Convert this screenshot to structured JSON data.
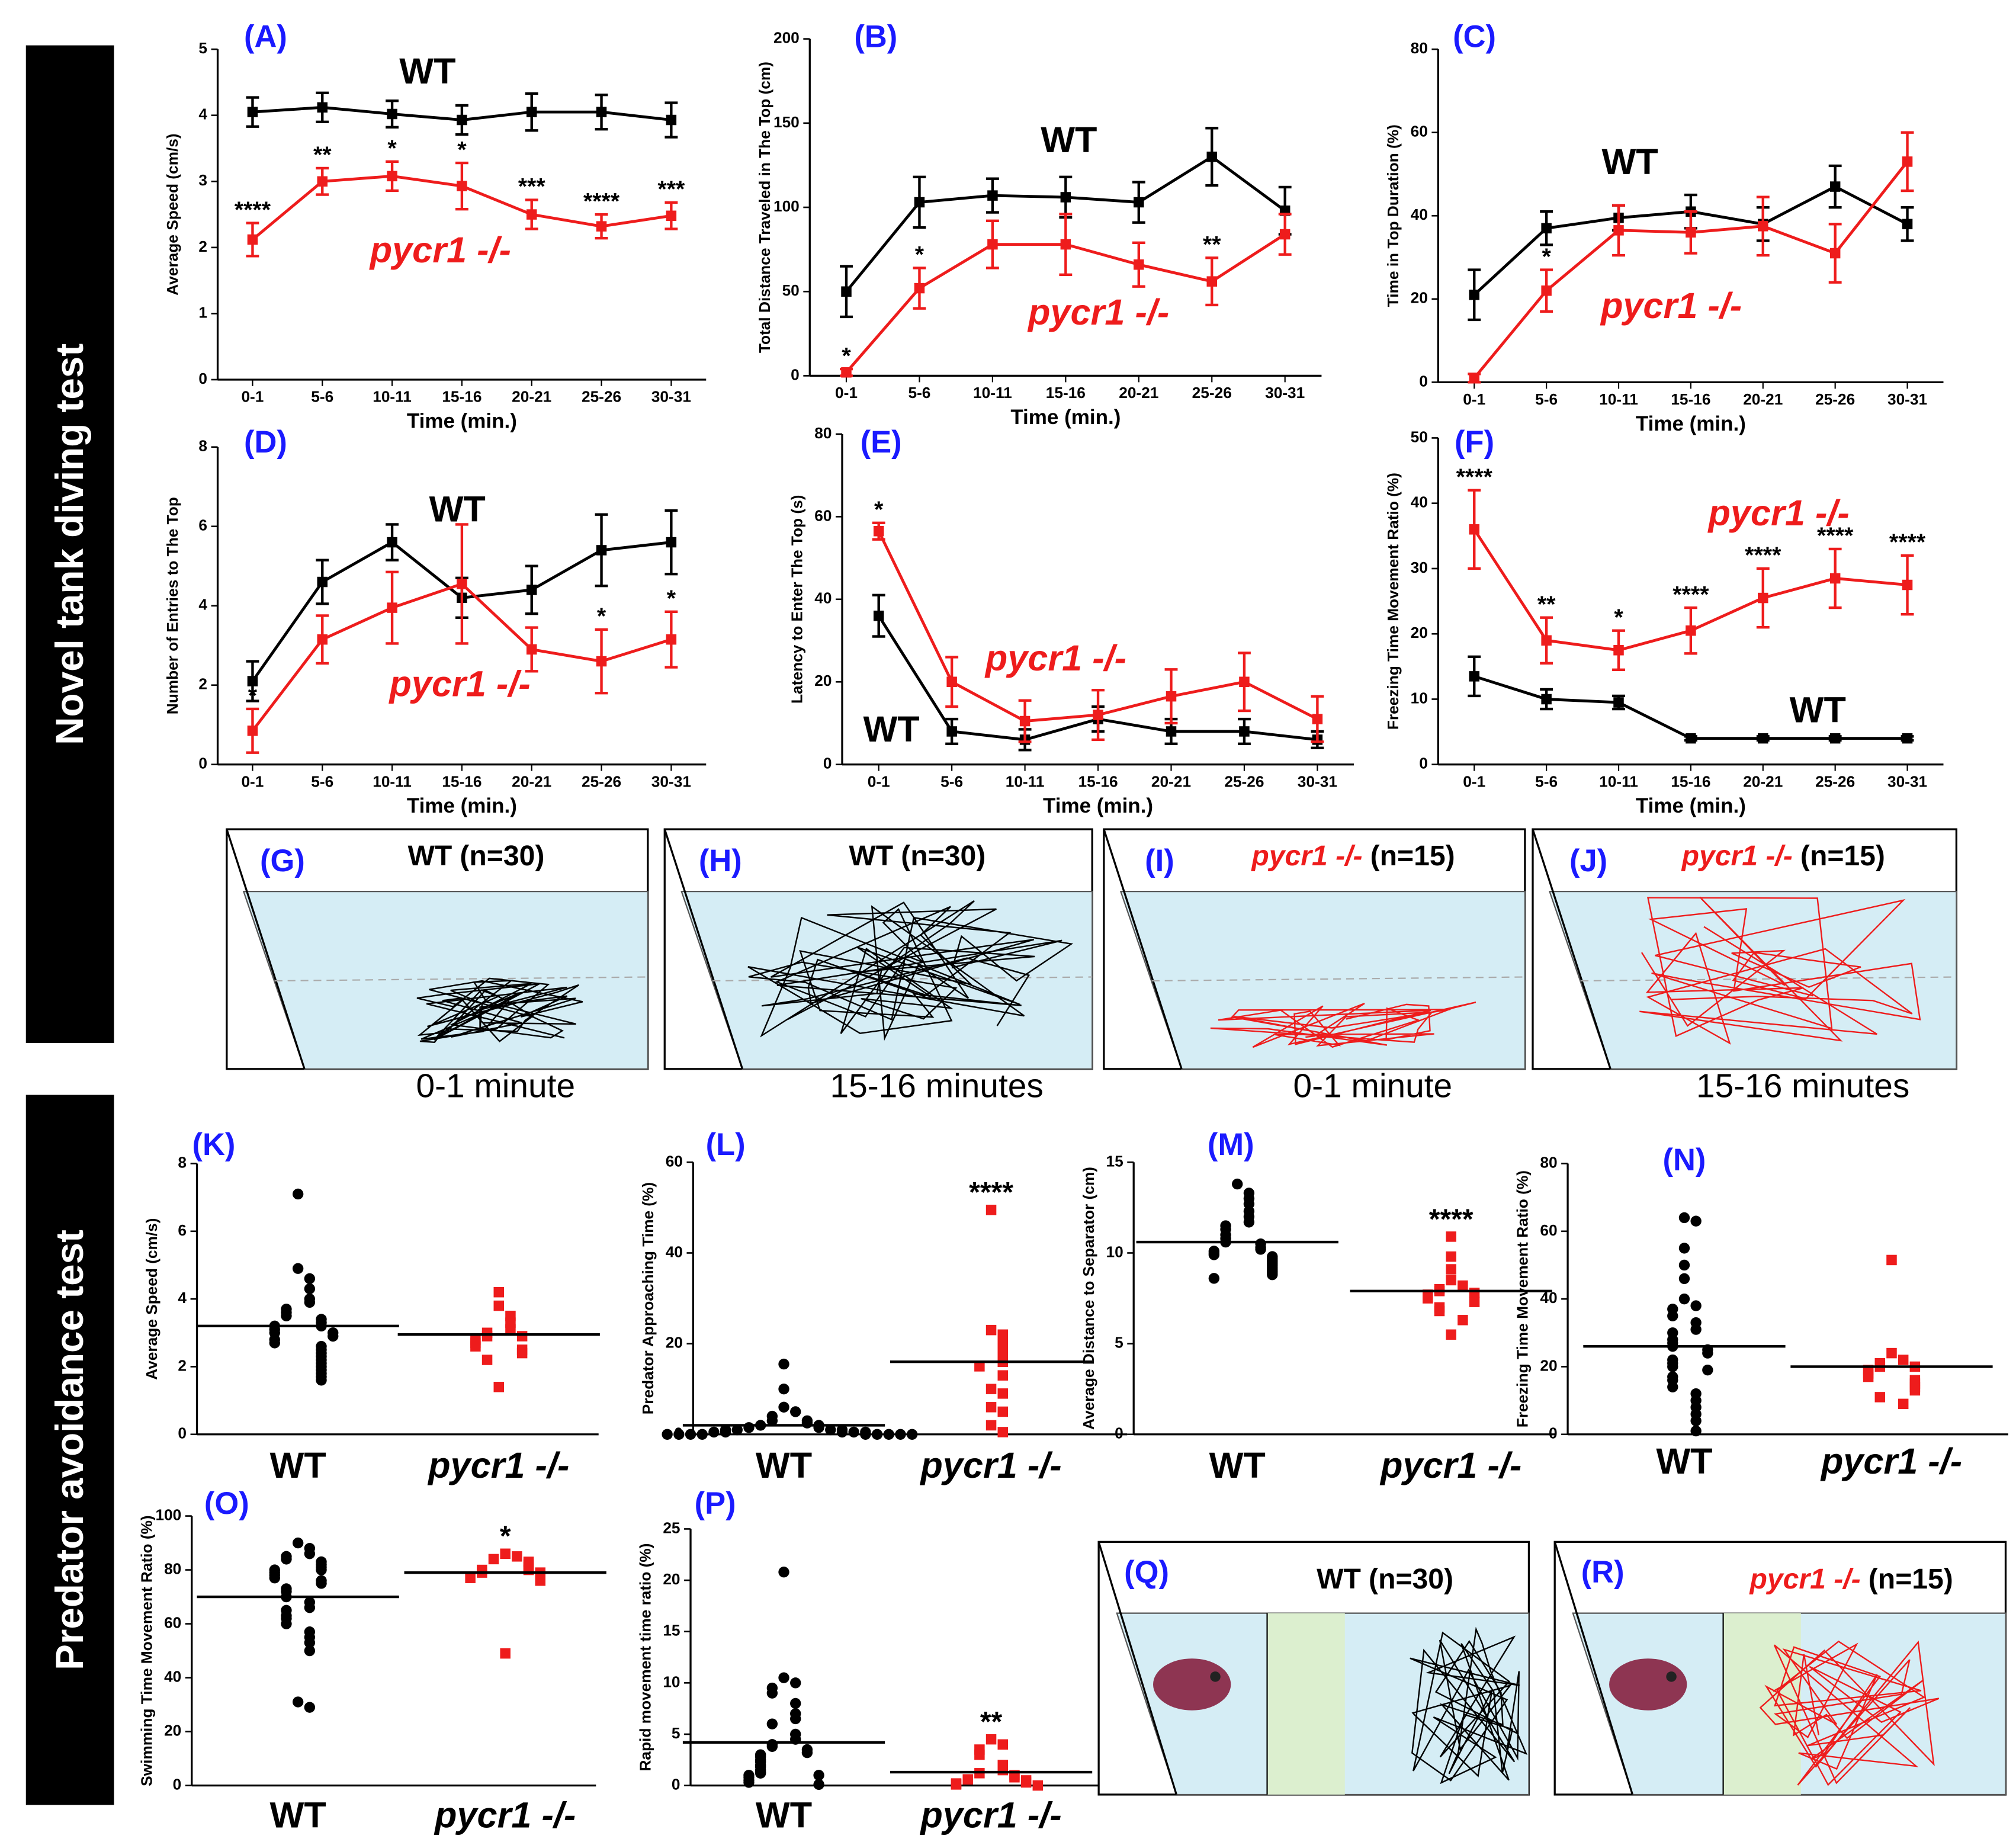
{
  "sections": [
    "Novel tank diving test",
    "Predator avoidance test"
  ],
  "chart_data": [
    {
      "type": "line",
      "panel": "(A)",
      "ylabel": "Average Speed (cm/s)",
      "xlabel": "Time (min.)",
      "categories": [
        "0-1",
        "5-6",
        "10-11",
        "15-16",
        "20-21",
        "25-26",
        "30-31"
      ],
      "ylim": [
        0,
        5
      ],
      "yticks": [
        0,
        1,
        2,
        3,
        4,
        5
      ],
      "series": [
        {
          "name": "WT",
          "color": "#000000",
          "values": [
            4.05,
            4.12,
            4.02,
            3.93,
            4.05,
            4.05,
            3.93
          ],
          "errors": [
            0.22,
            0.22,
            0.2,
            0.22,
            0.28,
            0.26,
            0.26
          ]
        },
        {
          "name": "pycr1 -/-",
          "color": "#ee1c1c",
          "values": [
            2.12,
            3.0,
            3.08,
            2.93,
            2.5,
            2.32,
            2.48
          ],
          "errors": [
            0.25,
            0.2,
            0.22,
            0.35,
            0.22,
            0.18,
            0.2
          ],
          "stars": [
            "****",
            "**",
            "*",
            "*",
            "***",
            "****",
            "***"
          ]
        }
      ]
    },
    {
      "type": "line",
      "panel": "(B)",
      "ylabel": "Total Distance Traveled in The Top (cm)",
      "xlabel": "Time (min.)",
      "categories": [
        "0-1",
        "5-6",
        "10-11",
        "15-16",
        "20-21",
        "25-26",
        "30-31"
      ],
      "ylim": [
        0,
        200
      ],
      "yticks": [
        0,
        50,
        100,
        150,
        200
      ],
      "series": [
        {
          "name": "WT",
          "color": "#000000",
          "values": [
            50,
            103,
            107,
            106,
            103,
            130,
            98
          ],
          "errors": [
            15,
            15,
            10,
            12,
            12,
            17,
            14
          ]
        },
        {
          "name": "pycr1 -/-",
          "color": "#ee1c1c",
          "values": [
            2,
            52,
            78,
            78,
            66,
            56,
            84
          ],
          "errors": [
            2,
            12,
            14,
            18,
            13,
            14,
            12
          ],
          "stars": [
            "*",
            "*",
            null,
            null,
            null,
            "**",
            null
          ]
        }
      ]
    },
    {
      "type": "line",
      "panel": "(C)",
      "ylabel": "Time in Top Duration (%)",
      "xlabel": "Time (min.)",
      "categories": [
        "0-1",
        "5-6",
        "10-11",
        "15-16",
        "20-21",
        "25-26",
        "30-31"
      ],
      "ylim": [
        0,
        80
      ],
      "yticks": [
        0,
        20,
        40,
        60,
        80
      ],
      "series": [
        {
          "name": "WT",
          "color": "#000000",
          "values": [
            21,
            37,
            39.5,
            41,
            38,
            47,
            38
          ],
          "errors": [
            6,
            4,
            3,
            4,
            4,
            5,
            4
          ]
        },
        {
          "name": "pycr1 -/-",
          "color": "#ee1c1c",
          "values": [
            1,
            22,
            36.5,
            36,
            37.5,
            31,
            53
          ],
          "errors": [
            1,
            5,
            6,
            5,
            7,
            7,
            7
          ],
          "stars": [
            null,
            "*",
            null,
            null,
            null,
            null,
            null
          ]
        }
      ]
    },
    {
      "type": "line",
      "panel": "(D)",
      "ylabel": "Number of Entries to The Top",
      "xlabel": "Time (min.)",
      "categories": [
        "0-1",
        "5-6",
        "10-11",
        "15-16",
        "20-21",
        "25-26",
        "30-31"
      ],
      "ylim": [
        0,
        8
      ],
      "yticks": [
        0,
        2,
        4,
        6,
        8
      ],
      "series": [
        {
          "name": "WT",
          "color": "#000000",
          "values": [
            2.1,
            4.6,
            5.6,
            4.2,
            4.4,
            5.4,
            5.6
          ],
          "errors": [
            0.5,
            0.55,
            0.45,
            0.5,
            0.6,
            0.9,
            0.8
          ]
        },
        {
          "name": "pycr1 -/-",
          "color": "#ee1c1c",
          "values": [
            0.85,
            3.15,
            3.95,
            4.55,
            2.9,
            2.6,
            3.15
          ],
          "errors": [
            0.55,
            0.6,
            0.9,
            1.5,
            0.55,
            0.8,
            0.7
          ],
          "stars": [
            "*",
            null,
            null,
            null,
            null,
            "*",
            "*"
          ]
        }
      ]
    },
    {
      "type": "line",
      "panel": "(E)",
      "ylabel": "Latency to Enter The Top (s)",
      "xlabel": "Time (min.)",
      "categories": [
        "0-1",
        "5-6",
        "10-11",
        "15-16",
        "20-21",
        "25-26",
        "30-31"
      ],
      "ylim": [
        0,
        80
      ],
      "yticks": [
        0,
        20,
        40,
        60,
        80
      ],
      "series": [
        {
          "name": "WT",
          "color": "#000000",
          "values": [
            36,
            8,
            6,
            11,
            8,
            8,
            6
          ],
          "errors": [
            5,
            3,
            2.5,
            3,
            3,
            3,
            2
          ]
        },
        {
          "name": "pycr1 -/-",
          "color": "#ee1c1c",
          "values": [
            56.5,
            20,
            10.5,
            12,
            16.5,
            20,
            11
          ],
          "errors": [
            2,
            6,
            5,
            6,
            6.5,
            7,
            5.5
          ],
          "stars": [
            "*",
            null,
            null,
            null,
            null,
            null,
            null
          ]
        }
      ]
    },
    {
      "type": "line",
      "panel": "(F)",
      "ylabel": "Freezing Time Movement Ratio (%)",
      "xlabel": "Time (min.)",
      "categories": [
        "0-1",
        "5-6",
        "10-11",
        "15-16",
        "20-21",
        "25-26",
        "30-31"
      ],
      "ylim": [
        0,
        50
      ],
      "yticks": [
        0,
        10,
        20,
        30,
        40,
        50
      ],
      "series": [
        {
          "name": "WT",
          "color": "#000000",
          "values": [
            13.5,
            10,
            9.5,
            4,
            4,
            4,
            4
          ],
          "errors": [
            3,
            1.5,
            1,
            0.3,
            0.3,
            0.3,
            0.3
          ]
        },
        {
          "name": "pycr1 -/-",
          "color": "#ee1c1c",
          "values": [
            36,
            19,
            17.5,
            20.5,
            25.5,
            28.5,
            27.5
          ],
          "errors": [
            6,
            3.5,
            3,
            3.5,
            4.5,
            4.5,
            4.5
          ],
          "stars": [
            "****",
            "**",
            "*",
            "****",
            "****",
            "****",
            "****"
          ]
        }
      ]
    },
    {
      "type": "dot",
      "panel": "(K)",
      "ylabel": "Average Speed (cm/s)",
      "ylim": [
        0,
        8
      ],
      "yticks": [
        0,
        2,
        4,
        6,
        8
      ],
      "series": [
        {
          "name": "WT",
          "color": "#000000",
          "marker": "circle",
          "mean": 3.2,
          "values": [
            7.1,
            4.9,
            4.6,
            4.3,
            4.0,
            3.9,
            3.7,
            3.6,
            3.5,
            3.4,
            3.3,
            3.2,
            3.2,
            3.1,
            3.0,
            3.0,
            2.9,
            2.8,
            2.7,
            2.6,
            2.5,
            2.4,
            2.3,
            2.2,
            2.1,
            2.0,
            1.9,
            1.8,
            1.7,
            1.6
          ]
        },
        {
          "name": "pycr1 -/-",
          "color": "#ee1c1c",
          "marker": "square",
          "mean": 2.95,
          "values": [
            4.2,
            3.8,
            3.5,
            3.3,
            3.1,
            3.0,
            2.9,
            2.9,
            2.8,
            2.7,
            2.6,
            2.5,
            2.4,
            2.2,
            1.4
          ]
        }
      ]
    },
    {
      "type": "dot",
      "panel": "(L)",
      "ylabel": "Predator Approaching Time (%)",
      "ylim": [
        0,
        60
      ],
      "yticks": [
        0,
        20,
        40,
        60
      ],
      "series": [
        {
          "name": "WT",
          "color": "#000000",
          "marker": "circle",
          "mean": 2,
          "values": [
            15.5,
            10,
            6,
            5,
            4,
            3,
            3,
            2.5,
            2,
            2,
            1.5,
            1.5,
            1,
            1,
            1,
            1,
            0.5,
            0.5,
            0.5,
            0.5,
            0.5,
            0,
            0,
            0,
            0,
            0,
            0,
            0,
            0,
            0
          ]
        },
        {
          "name": "pycr1 -/-",
          "color": "#ee1c1c",
          "marker": "square",
          "mean": 16,
          "star": "****",
          "values": [
            49.5,
            23,
            22,
            20,
            19,
            17,
            16,
            15,
            13,
            10,
            9,
            6,
            5,
            2,
            0.5
          ]
        }
      ]
    },
    {
      "type": "dot",
      "panel": "(M)",
      "ylabel": "Average Distance to Separator (cm)",
      "ylim": [
        0,
        15
      ],
      "yticks": [
        0,
        5,
        10,
        15
      ],
      "series": [
        {
          "name": "WT",
          "color": "#000000",
          "marker": "circle",
          "mean": 10.6,
          "values": [
            13.8,
            13.3,
            13,
            12.7,
            12.3,
            12,
            11.7,
            11.5,
            11.3,
            11,
            10.8,
            10.6,
            10.5,
            10.3,
            10.2,
            10.1,
            10,
            9.9,
            9.8,
            9.7,
            9.6,
            9.5,
            9.4,
            9.3,
            9.2,
            9.1,
            9.0,
            8.9,
            8.8,
            8.6
          ]
        },
        {
          "name": "pycr1 -/-",
          "color": "#ee1c1c",
          "marker": "square",
          "mean": 7.9,
          "star": "****",
          "values": [
            10.9,
            9.8,
            9.1,
            8.5,
            8.2,
            8.0,
            7.9,
            7.8,
            7.7,
            7.5,
            7.3,
            7.0,
            6.8,
            6.3,
            5.5
          ]
        }
      ]
    },
    {
      "type": "dot",
      "panel": "(N)",
      "ylabel": "Freezing Time Movement Ratio (%)",
      "ylim": [
        0,
        80
      ],
      "yticks": [
        0,
        20,
        40,
        60,
        80
      ],
      "series": [
        {
          "name": "WT",
          "color": "#000000",
          "marker": "circle",
          "mean": 26,
          "values": [
            64,
            63,
            55,
            50,
            46,
            40,
            38,
            37,
            35,
            33,
            31,
            30,
            28,
            27,
            26,
            25,
            24,
            22,
            21,
            20,
            19,
            17,
            16,
            14,
            12,
            10,
            8,
            6,
            4,
            1
          ]
        },
        {
          "name": "pycr1 -/-",
          "color": "#ee1c1c",
          "marker": "square",
          "mean": 20,
          "values": [
            51.5,
            24,
            22,
            21,
            20,
            20,
            19,
            18,
            17,
            16,
            15,
            14,
            13,
            11,
            9
          ]
        }
      ]
    },
    {
      "type": "dot",
      "panel": "(O)",
      "ylabel": "Swimming Time Movement Ratio (%)",
      "ylim": [
        0,
        100
      ],
      "yticks": [
        0,
        20,
        40,
        60,
        80,
        100
      ],
      "series": [
        {
          "name": "WT",
          "color": "#000000",
          "marker": "circle",
          "mean": 70,
          "values": [
            90,
            88,
            86,
            85,
            84,
            83,
            82,
            81,
            80,
            80,
            79,
            78,
            77,
            76,
            75,
            73,
            72,
            70,
            68,
            66,
            65,
            63,
            62,
            60,
            57,
            55,
            53,
            50,
            31,
            29
          ]
        },
        {
          "name": "pycr1 -/-",
          "color": "#ee1c1c",
          "marker": "square",
          "mean": 79,
          "star": "*",
          "values": [
            86,
            85,
            84,
            83,
            82,
            81,
            80,
            80,
            79,
            79,
            78,
            77,
            77,
            76,
            49
          ]
        }
      ]
    },
    {
      "type": "dot",
      "panel": "(P)",
      "ylabel": "Rapid movement time ratio (%)",
      "ylim": [
        0,
        25
      ],
      "yticks": [
        0,
        5,
        10,
        15,
        20,
        25
      ],
      "series": [
        {
          "name": "WT",
          "color": "#000000",
          "marker": "circle",
          "mean": 4.2,
          "values": [
            20.8,
            10.5,
            10,
            9.5,
            9,
            8,
            7,
            6.5,
            6,
            5,
            4.5,
            4,
            3.8,
            3.5,
            3.2,
            3,
            2.8,
            2.5,
            2.3,
            2,
            1.8,
            1.5,
            1.3,
            1.2,
            1,
            1,
            0.8,
            0.5,
            0.3,
            0.1
          ]
        },
        {
          "name": "pycr1 -/-",
          "color": "#ee1c1c",
          "marker": "square",
          "mean": 1.3,
          "star": "**",
          "values": [
            4.5,
            4,
            3.5,
            3,
            2,
            1.5,
            1.2,
            1,
            0.8,
            0.6,
            0.5,
            0.3,
            0.2,
            0.1,
            0
          ]
        }
      ]
    }
  ],
  "tank_tests": [
    {
      "panel": "(G)",
      "genotype": "WT",
      "n": "(n=30)",
      "caption": "0-1 minute",
      "color": "#000000"
    },
    {
      "panel": "(H)",
      "genotype": "WT",
      "n": "(n=30)",
      "caption": "15-16 minutes",
      "color": "#000000"
    },
    {
      "panel": "(I)",
      "genotype": "pycr1 -/-",
      "n": "(n=15)",
      "caption": "0-1 minute",
      "color": "#ee1c1c"
    },
    {
      "panel": "(J)",
      "genotype": "pycr1 -/-",
      "n": "(n=15)",
      "caption": "15-16 minutes",
      "color": "#ee1c1c"
    }
  ],
  "predator_tests": [
    {
      "panel": "(Q)",
      "genotype": "WT",
      "n": "(n=30)",
      "color": "#000000"
    },
    {
      "panel": "(R)",
      "genotype": "pycr1 -/-",
      "n": "(n=15)",
      "color": "#ee1c1c"
    }
  ]
}
